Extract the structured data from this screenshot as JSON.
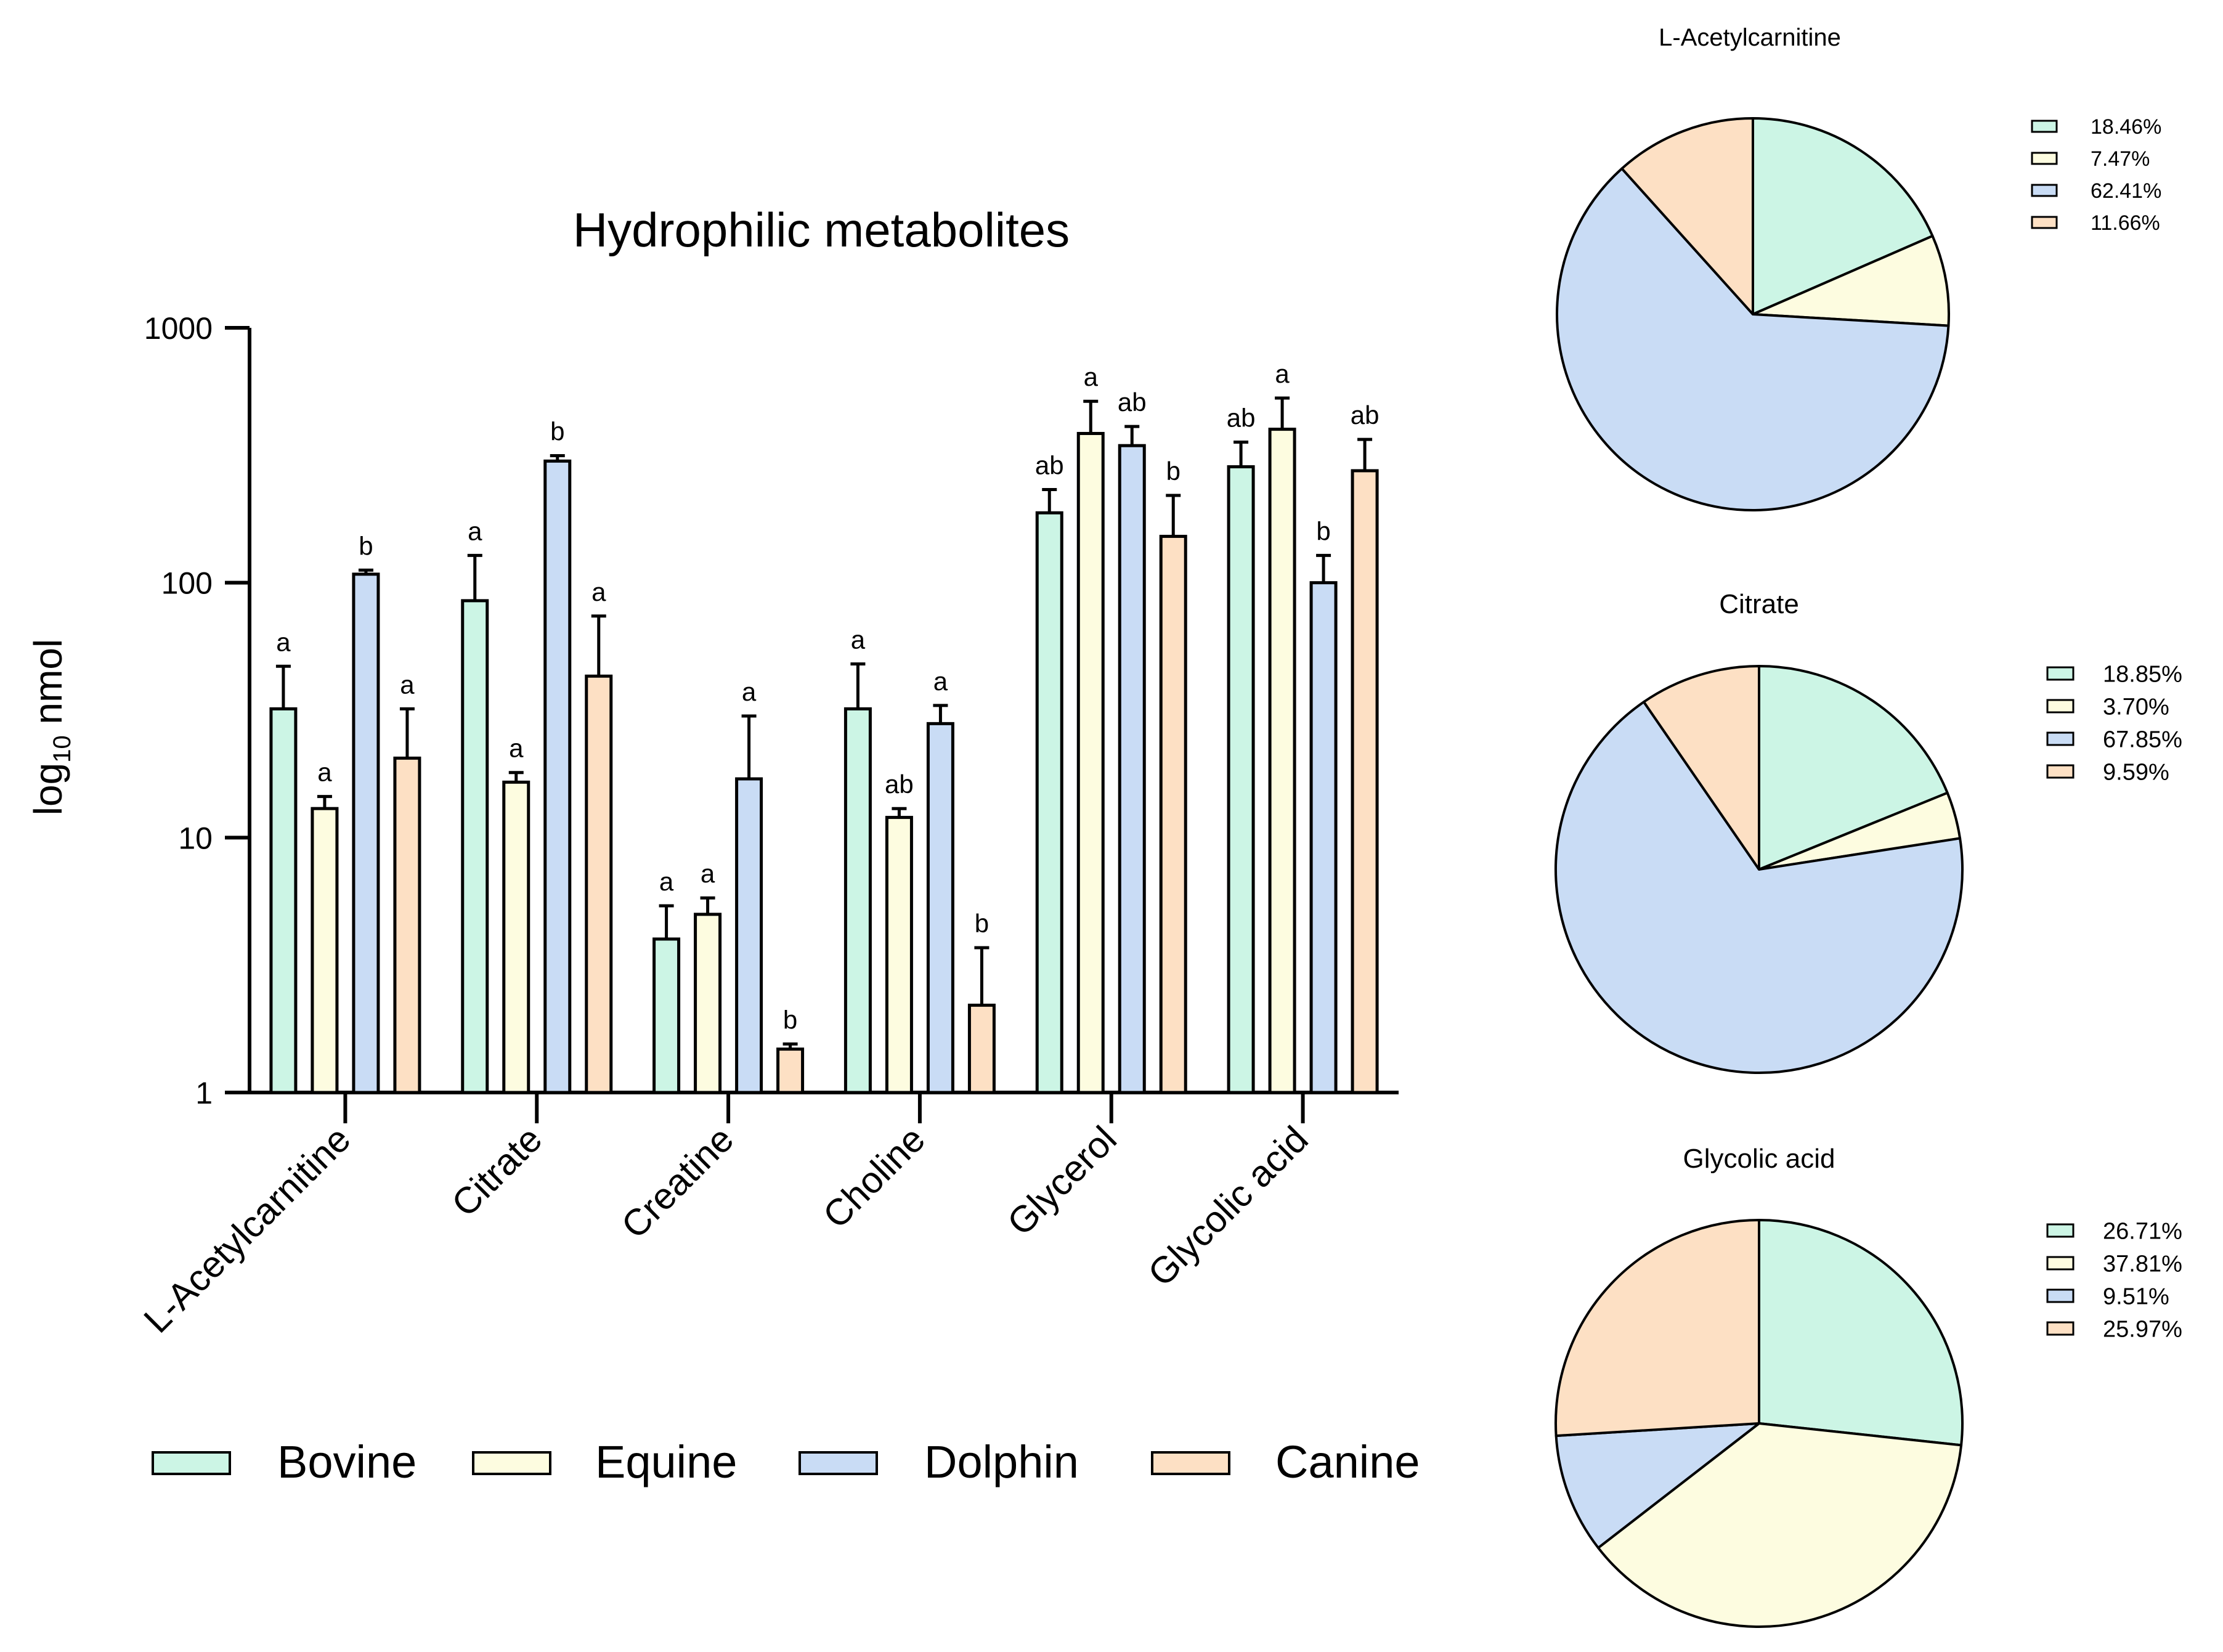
{
  "colors": {
    "Bovine": "#ccf5e5",
    "Equine": "#fdfce0",
    "Dolphin": "#c9dcf5",
    "Canine": "#fde0c4",
    "stroke": "#000000"
  },
  "chart_data": [
    {
      "type": "bar",
      "title": "Hydrophilic metabolites",
      "ylabel": {
        "main": "log",
        "sub": "10",
        "rest": " nmol"
      },
      "yscale": "log",
      "ylim": [
        1,
        1000
      ],
      "yticks": [
        {
          "value": 1,
          "label": "1"
        },
        {
          "value": 10,
          "label": "10"
        },
        {
          "value": 100,
          "label": "100"
        },
        {
          "value": 1000,
          "label": "1000"
        }
      ],
      "categories": [
        "L-Acetylcarnitine",
        "Citrate",
        "Creatine",
        "Choline",
        "Glycerol",
        "Glycolic acid"
      ],
      "series": [
        {
          "name": "Bovine",
          "values": [
            32,
            85,
            4.0,
            32,
            188,
            285
          ],
          "errors": [
            47,
            128,
            5.4,
            48,
            232,
            356
          ],
          "labels": [
            "a",
            "a",
            "a",
            "a",
            "ab",
            "ab"
          ]
        },
        {
          "name": "Equine",
          "values": [
            13,
            16.5,
            5.0,
            12,
            385,
            400
          ],
          "errors": [
            14.5,
            18.0,
            5.8,
            13,
            515,
            530
          ],
          "labels": [
            "a",
            "a",
            "a",
            "ab",
            "a",
            "a"
          ]
        },
        {
          "name": "Dolphin",
          "values": [
            108,
            300,
            17,
            28,
            345,
            100
          ],
          "errors": [
            112,
            315,
            30,
            33,
            410,
            128
          ],
          "labels": [
            "b",
            "b",
            "a",
            "a",
            "ab",
            "b"
          ]
        },
        {
          "name": "Canine",
          "values": [
            20.5,
            43,
            1.48,
            2.2,
            152,
            275
          ],
          "errors": [
            32,
            74,
            1.55,
            3.7,
            220,
            365
          ],
          "labels": [
            "a",
            "a",
            "b",
            "b",
            "b",
            "ab"
          ]
        }
      ],
      "legend": {
        "position": "bottom",
        "entries": [
          "Bovine",
          "Equine",
          "Dolphin",
          "Canine"
        ]
      }
    },
    {
      "type": "pie",
      "title": "L-Acetylcarnitine",
      "labels": [
        "Bovine",
        "Equine",
        "Dolphin",
        "Canine"
      ],
      "values": [
        18.46,
        7.47,
        62.41,
        11.66
      ],
      "legend_labels": [
        "18.46%",
        "7.47%",
        "62.41%",
        "11.66%"
      ]
    },
    {
      "type": "pie",
      "title": "Citrate",
      "labels": [
        "Bovine",
        "Equine",
        "Dolphin",
        "Canine"
      ],
      "values": [
        18.85,
        3.7,
        67.85,
        9.59
      ],
      "legend_labels": [
        "18.85%",
        "3.70%",
        "67.85%",
        "9.59%"
      ]
    },
    {
      "type": "pie",
      "title": "Glycolic acid",
      "labels": [
        "Bovine",
        "Equine",
        "Dolphin",
        "Canine"
      ],
      "values": [
        26.71,
        37.81,
        9.51,
        25.97
      ],
      "legend_labels": [
        "26.71%",
        "37.81%",
        "9.51%",
        "25.97%"
      ]
    }
  ]
}
